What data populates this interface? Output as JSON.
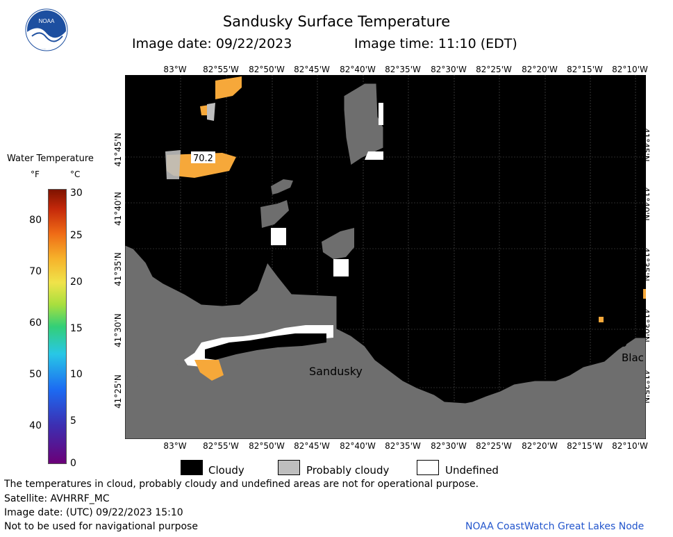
{
  "header": {
    "title": "Sandusky Surface Temperature",
    "image_date": "Image date: 09/22/2023",
    "image_time": "Image time: 11:10 (EDT)"
  },
  "logo": {
    "text": "NOAA",
    "icon": "noaa-logo"
  },
  "map": {
    "longitude_ticks": [
      "83°W",
      "82°55'W",
      "82°50'W",
      "82°45'W",
      "82°40'W",
      "82°35'W",
      "82°30'W",
      "82°25'W",
      "82°20'W",
      "82°15'W",
      "82°10'W"
    ],
    "latitude_ticks": [
      "41°45'N",
      "41°40'N",
      "41°35'N",
      "41°30'N",
      "41°25'N"
    ],
    "labels": {
      "city": "Sandusky",
      "city_partial": "Blac",
      "temperature": "70.2"
    },
    "colors": {
      "cloudy": "#000000",
      "land": "#6e6e6e",
      "probably_cloudy": "#bebebe",
      "undefined": "#ffffff",
      "warm_water": "#f6a83a"
    }
  },
  "legend": {
    "title": "Water Temperature",
    "unit_f": "°F",
    "unit_c": "°C",
    "f_ticks": [
      "80",
      "70",
      "60",
      "50",
      "40"
    ],
    "c_ticks": [
      "30",
      "25",
      "20",
      "15",
      "10",
      "5",
      "0"
    ]
  },
  "key": {
    "cloudy": "Cloudy",
    "probably_cloudy": "Probably cloudy",
    "undefined": "Undefined"
  },
  "notes": {
    "line1": "The temperatures in cloud, probably cloudy and undefined areas are not for operational purpose.",
    "satellite": "Satellite: AVHRRF_MC",
    "utc_date": "Image date: (UTC) 09/22/2023  15:10",
    "nav": "Not to be used for navigational purpose",
    "credit": "NOAA CoastWatch Great Lakes Node"
  }
}
